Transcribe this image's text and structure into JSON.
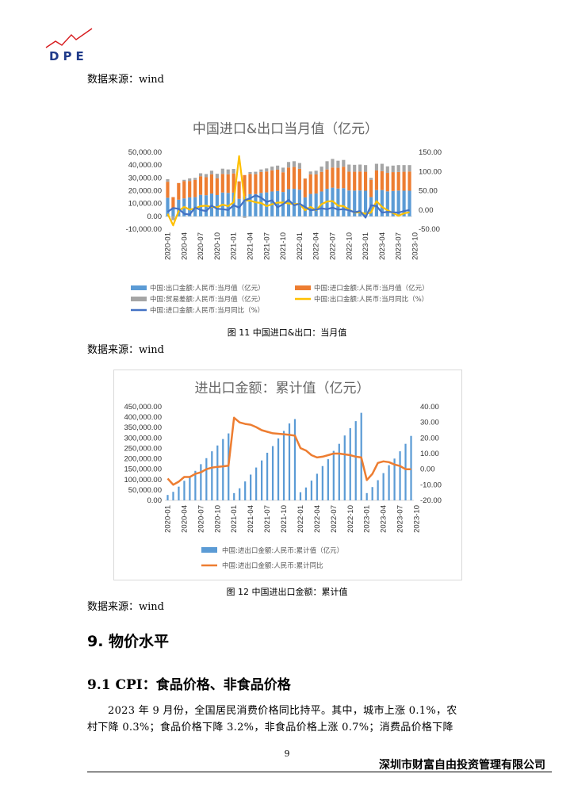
{
  "header": {
    "logo_text": "DPE"
  },
  "sources": {
    "s1": "数据来源：wind",
    "s2": "数据来源：wind",
    "s3": "数据来源：wind"
  },
  "x_labels": [
    "2020-01",
    "2020-04",
    "2020-07",
    "2020-10",
    "2021-01",
    "2021-04",
    "2021-07",
    "2021-10",
    "2022-01",
    "2022-04",
    "2022-07",
    "2022-10",
    "2023-01",
    "2023-04",
    "2023-07",
    "2023-10"
  ],
  "chart1": {
    "title": "中国进口&出口当月值（亿元）",
    "caption": "图 11  中国进口&出口：当月值",
    "y_left_ticks": [
      "50,000.00",
      "40,000.00",
      "30,000.00",
      "20,000.00",
      "10,000.00",
      "0.00",
      "-10,000.00"
    ],
    "y_right_ticks": [
      "150.00",
      "100.00",
      "50.00",
      "0.00",
      "-50.00"
    ],
    "legend": [
      "中国:出口金额:人民币:当月值（亿元）",
      "中国:进口金额:人民币:当月值（亿元）",
      "中国:贸易差额:人民币:当月值（亿元）",
      "中国:出口金额:人民币:当月同比（%）",
      "中国:进口金额:人民币:当月同比（%）"
    ],
    "colors": {
      "export": "#5b9bd5",
      "import": "#ed7d31",
      "balance": "#a5a5a5",
      "export_yoy": "#ffc000",
      "import_yoy": "#4472c4"
    }
  },
  "chart2": {
    "title": "进出口金额：累计值（亿元）",
    "caption": "图 12  中国进出口金额：累计值",
    "y_left_ticks": [
      "450,000.00",
      "400,000.00",
      "350,000.00",
      "300,000.00",
      "250,000.00",
      "200,000.00",
      "150,000.00",
      "100,000.00",
      "50,000.00",
      "0.00"
    ],
    "y_right_ticks": [
      "40.00",
      "30.00",
      "20.00",
      "10.00",
      "0.00",
      "-10.00",
      "-20.00"
    ],
    "legend": [
      "中国:进出口金额:人民币:累计值（亿元）",
      "中国:进出口金额:人民币:累计同比"
    ],
    "colors": {
      "cum": "#5b9bd5",
      "yoy": "#ed7d31"
    }
  },
  "chart_data": [
    {
      "type": "bar",
      "title": "中国进口&出口当月值（亿元）",
      "x": [
        "2020-01",
        "2020-02",
        "2020-03",
        "2020-04",
        "2020-05",
        "2020-06",
        "2020-07",
        "2020-08",
        "2020-09",
        "2020-10",
        "2020-11",
        "2020-12",
        "2021-01",
        "2021-02",
        "2021-03",
        "2021-04",
        "2021-05",
        "2021-06",
        "2021-07",
        "2021-08",
        "2021-09",
        "2021-10",
        "2021-11",
        "2021-12",
        "2022-01",
        "2022-02",
        "2022-03",
        "2022-04",
        "2022-05",
        "2022-06",
        "2022-07",
        "2022-08",
        "2022-09",
        "2022-10",
        "2022-11",
        "2022-12",
        "2023-01",
        "2023-02",
        "2023-03",
        "2023-04",
        "2023-05",
        "2023-06",
        "2023-07",
        "2023-08",
        "2023-09"
      ],
      "ylim_left": [
        -10000,
        50000
      ],
      "ylim_right": [
        -50,
        150
      ],
      "series": [
        {
          "name": "中国:出口金额:人民币:当月值（亿元）",
          "axis": "left",
          "values": [
            14500,
            6000,
            13000,
            14000,
            14800,
            15000,
            16800,
            16500,
            17800,
            16600,
            18600,
            18300,
            18500,
            13700,
            15500,
            17300,
            17400,
            18300,
            18700,
            19400,
            19800,
            19000,
            21200,
            21500,
            20800,
            14800,
            17500,
            17800,
            19400,
            21500,
            22400,
            21700,
            22000,
            20200,
            20100,
            20200,
            20000,
            15000,
            20500,
            20500,
            19500,
            19800,
            20100,
            20000,
            20000
          ]
        },
        {
          "name": "中国:进口金额:人民币:当月值（亿元）",
          "axis": "left",
          "values": [
            12500,
            9000,
            13000,
            13500,
            12800,
            13500,
            14500,
            14000,
            15000,
            13000,
            14500,
            14500,
            15000,
            13500,
            16700,
            15800,
            15500,
            16300,
            16300,
            16500,
            16600,
            15400,
            16900,
            17000,
            16300,
            14600,
            15300,
            14900,
            15300,
            15100,
            15700,
            16200,
            16700,
            14700,
            14700,
            14800,
            14800,
            13500,
            15300,
            14800,
            14400,
            14700,
            14500,
            14800,
            15000
          ]
        },
        {
          "name": "中国:贸易差额:人民币:当月值（亿元）",
          "axis": "left",
          "values": [
            2000,
            -3000,
            0,
            1000,
            2000,
            1500,
            2300,
            2500,
            2800,
            3600,
            4100,
            3800,
            3500,
            200,
            -1200,
            1500,
            1900,
            2000,
            2400,
            2900,
            3200,
            3600,
            4300,
            4500,
            4500,
            200,
            2200,
            2900,
            4100,
            6400,
            6700,
            5500,
            5300,
            5500,
            5400,
            5400,
            5200,
            1500,
            5200,
            5700,
            5100,
            5100,
            5400,
            5200,
            5000
          ]
        },
        {
          "name": "中国:出口金额:人民币:当月同比（%）",
          "axis": "right",
          "values": [
            -10,
            -40,
            -3,
            8,
            1,
            4,
            10,
            11,
            8,
            7,
            14,
            10,
            20,
            140,
            25,
            24,
            20,
            18,
            10,
            15,
            19,
            19,
            17,
            15,
            16,
            -1,
            8,
            -1,
            15,
            22,
            23,
            11,
            10,
            1,
            -7,
            -6,
            -10,
            -7,
            23,
            8,
            -1,
            -8,
            -15,
            -9,
            -6
          ]
        },
        {
          "name": "中国:进口金额:人民币:当月同比（%）",
          "axis": "right",
          "values": [
            -5,
            5,
            3,
            -10,
            -12,
            6,
            0,
            -3,
            11,
            3,
            2,
            0,
            12,
            6,
            25,
            30,
            38,
            32,
            21,
            25,
            7,
            15,
            26,
            12,
            16,
            8,
            -1,
            1,
            4,
            2,
            6,
            1,
            2,
            -1,
            -6,
            -3,
            -20,
            12,
            10,
            -7,
            -5,
            -6,
            -7,
            -3,
            0
          ]
        }
      ],
      "legend_position": "bottom"
    },
    {
      "type": "bar",
      "title": "进出口金额：累计值（亿元）",
      "x": [
        "2020-01",
        "2020-02",
        "2020-03",
        "2020-04",
        "2020-05",
        "2020-06",
        "2020-07",
        "2020-08",
        "2020-09",
        "2020-10",
        "2020-11",
        "2020-12",
        "2021-01",
        "2021-02",
        "2021-03",
        "2021-04",
        "2021-05",
        "2021-06",
        "2021-07",
        "2021-08",
        "2021-09",
        "2021-10",
        "2021-11",
        "2021-12",
        "2022-01",
        "2022-02",
        "2022-03",
        "2022-04",
        "2022-05",
        "2022-06",
        "2022-07",
        "2022-08",
        "2022-09",
        "2022-10",
        "2022-11",
        "2022-12",
        "2023-01",
        "2023-02",
        "2023-03",
        "2023-04",
        "2023-05",
        "2023-06",
        "2023-07",
        "2023-08",
        "2023-09"
      ],
      "ylim_left": [
        0,
        450000
      ],
      "ylim_right": [
        -20,
        40
      ],
      "series": [
        {
          "name": "中国:进出口金额:人民币:累计值（亿元）",
          "axis": "left",
          "values": [
            26000,
            41000,
            66000,
            94000,
            117000,
            142000,
            174000,
            203000,
            236000,
            264000,
            295000,
            322000,
            35000,
            58000,
            91000,
            124000,
            158000,
            192000,
            229000,
            261000,
            298000,
            334000,
            370000,
            391000,
            39000,
            62000,
            95000,
            128000,
            165000,
            198000,
            238000,
            272000,
            312000,
            347000,
            381000,
            421000,
            35000,
            64000,
            97000,
            131000,
            169000,
            201000,
            236000,
            272000,
            310000
          ]
        },
        {
          "name": "中国:进出口金额:人民币:累计同比",
          "axis": "right",
          "values": [
            -6,
            -10,
            -8,
            -5,
            -5,
            -3,
            -2,
            0,
            1,
            1.5,
            1.8,
            2.2,
            33,
            30,
            29,
            28.5,
            27,
            25,
            24,
            23,
            22.7,
            22.4,
            22,
            21.5,
            13.5,
            12,
            9,
            7.5,
            8,
            9,
            10,
            10,
            9.5,
            9,
            8,
            7.5,
            -7,
            -3,
            4,
            5,
            4.5,
            3,
            2,
            0,
            0
          ]
        }
      ],
      "legend_position": "bottom"
    }
  ],
  "section": {
    "h2": "9.  物价水平",
    "h3": "9.1 CPI：食品价格、非食品价格",
    "para_line1": "2023 年 9 月份，全国居民消费价格同比持平。其中，城市上涨 0.1%，农",
    "para_line2": "村下降 0.3%；食品价格下降 3.2%，非食品价格上涨 0.7%；消费品价格下降"
  },
  "footer": {
    "page_number": "9",
    "company": "深圳市财富自由投资管理有限公司"
  }
}
